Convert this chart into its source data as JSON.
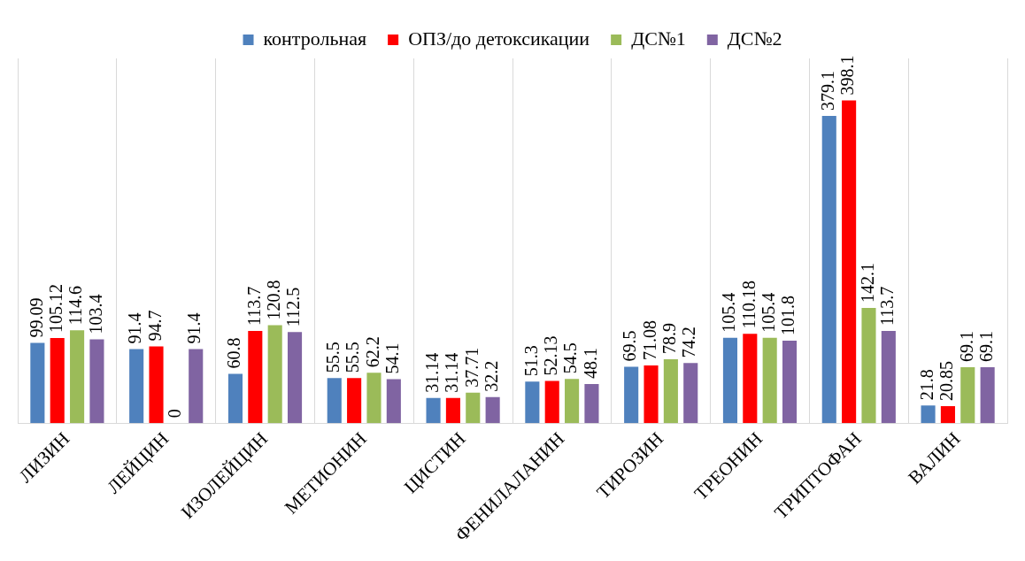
{
  "chart_data": {
    "type": "bar",
    "categories": [
      "ЛИЗИН",
      "ЛЕЙЦИН",
      "ИЗОЛЕЙЦИН",
      "МЕТИОНИН",
      "ЦИСТИН",
      "ФЕНИЛАЛАНИН",
      "ТИРОЗИН",
      "ТРЕОНИН",
      "ТРИПТОФАН",
      "ВАЛИН"
    ],
    "series": [
      {
        "name": "контрольная",
        "color": "#4f81bd",
        "values": [
          99.09,
          91.4,
          60.8,
          55.5,
          31.14,
          51.3,
          69.5,
          105.4,
          379.1,
          21.8
        ]
      },
      {
        "name": "ОПЗ/до детоксикации",
        "color": "#ff0000",
        "values": [
          105.12,
          94.7,
          113.7,
          55.5,
          31.14,
          52.13,
          71.08,
          110.18,
          398.1,
          20.85
        ]
      },
      {
        "name": "ДС№1",
        "color": "#9bbb59",
        "values": [
          114.6,
          0,
          120.8,
          62.2,
          37.71,
          54.5,
          78.9,
          105.4,
          142.1,
          69.1
        ]
      },
      {
        "name": "ДС№2",
        "color": "#8064a2",
        "values": [
          103.4,
          91.4,
          112.5,
          54.1,
          32.2,
          48.1,
          74.2,
          101.8,
          113.7,
          69.1
        ]
      }
    ],
    "data_labels": true,
    "legend": "top",
    "grid": "x"
  }
}
